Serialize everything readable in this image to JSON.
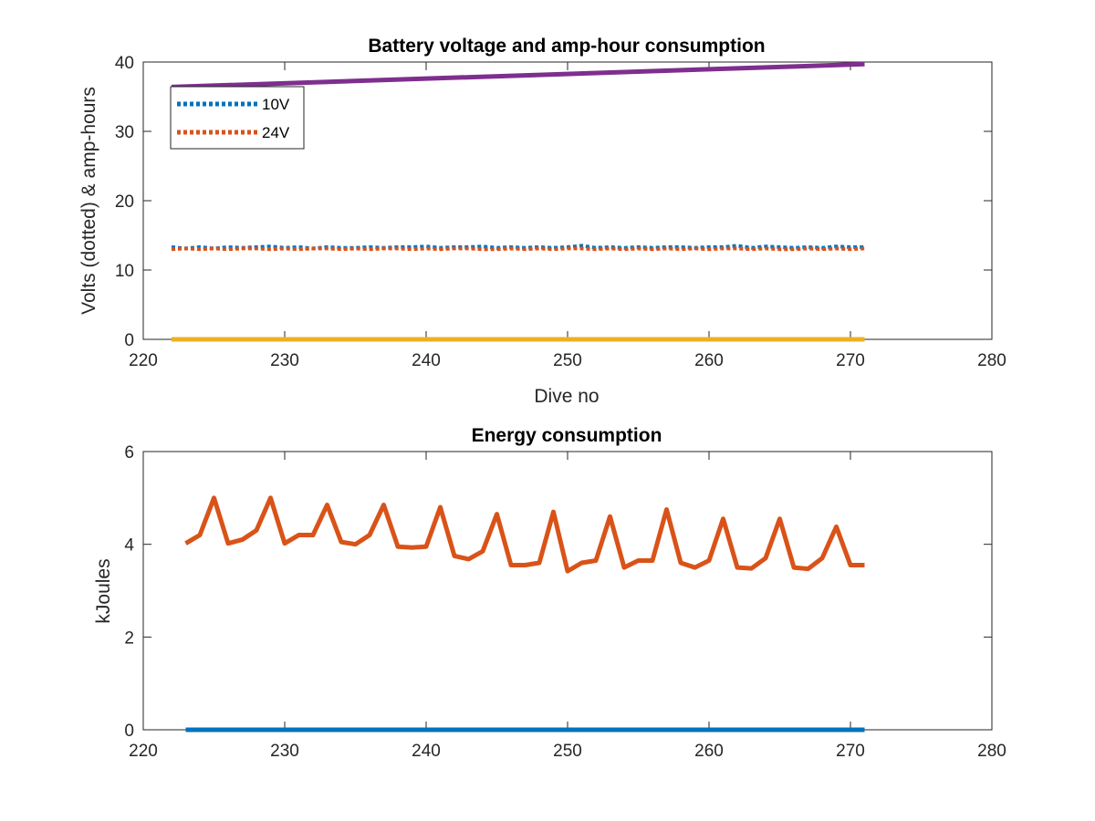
{
  "chart_data": [
    {
      "type": "line",
      "title": "Battery voltage and amp-hour consumption",
      "xlabel": "Dive no",
      "ylabel": "Volts (dotted) & amp-hours",
      "xlim": [
        220,
        280
      ],
      "ylim": [
        0,
        40
      ],
      "xticks": [
        "220",
        "230",
        "240",
        "250",
        "260",
        "270",
        "280"
      ],
      "yticks": [
        "0",
        "10",
        "20",
        "30",
        "40"
      ],
      "grid": false,
      "legend_position": "top-left",
      "series": [
        {
          "name": "10V",
          "style": "dotted",
          "color": "#0072BD",
          "x": [
            222,
            223,
            224,
            225,
            226,
            227,
            228,
            229,
            230,
            231,
            232,
            233,
            234,
            235,
            236,
            237,
            238,
            239,
            240,
            241,
            242,
            243,
            244,
            245,
            246,
            247,
            248,
            249,
            250,
            251,
            252,
            253,
            254,
            255,
            256,
            257,
            258,
            259,
            260,
            261,
            262,
            263,
            264,
            265,
            266,
            267,
            268,
            269,
            270,
            271
          ],
          "y": [
            13.3,
            13.1,
            13.3,
            13.1,
            13.3,
            13.2,
            13.3,
            13.4,
            13.2,
            13.3,
            13.1,
            13.3,
            13.2,
            13.2,
            13.3,
            13.2,
            13.3,
            13.3,
            13.4,
            13.2,
            13.3,
            13.3,
            13.4,
            13.2,
            13.3,
            13.2,
            13.3,
            13.2,
            13.3,
            13.5,
            13.2,
            13.3,
            13.2,
            13.3,
            13.2,
            13.3,
            13.3,
            13.2,
            13.3,
            13.3,
            13.5,
            13.2,
            13.4,
            13.3,
            13.2,
            13.3,
            13.2,
            13.4,
            13.3,
            13.3
          ]
        },
        {
          "name": "24V",
          "style": "dotted",
          "color": "#D95319",
          "x": [
            222,
            223,
            224,
            225,
            226,
            227,
            228,
            229,
            230,
            231,
            232,
            233,
            234,
            235,
            236,
            237,
            238,
            239,
            240,
            241,
            242,
            243,
            244,
            245,
            246,
            247,
            248,
            249,
            250,
            251,
            252,
            253,
            254,
            255,
            256,
            257,
            258,
            259,
            260,
            261,
            262,
            263,
            264,
            265,
            266,
            267,
            268,
            269,
            270,
            271
          ],
          "y": [
            13.0,
            13.1,
            13.0,
            13.1,
            13.0,
            13.1,
            13.1,
            13.0,
            13.1,
            13.0,
            13.1,
            13.1,
            13.0,
            13.1,
            13.0,
            13.1,
            13.1,
            13.0,
            13.1,
            13.0,
            13.1,
            13.1,
            13.0,
            13.0,
            13.1,
            13.0,
            13.1,
            13.0,
            13.1,
            13.1,
            13.0,
            13.1,
            13.0,
            13.1,
            13.0,
            13.1,
            13.0,
            13.1,
            13.0,
            13.1,
            13.1,
            13.0,
            13.1,
            13.0,
            13.0,
            13.1,
            13.0,
            13.1,
            13.0,
            13.1
          ]
        },
        {
          "style": "solid",
          "color": "#EDB120",
          "x": [
            222,
            271
          ],
          "y": [
            0,
            0
          ]
        },
        {
          "style": "solid",
          "color": "#7E2F8E",
          "x": [
            222,
            271
          ],
          "y": [
            36.4,
            39.7
          ]
        }
      ]
    },
    {
      "type": "line",
      "title": "Energy consumption",
      "xlabel": "",
      "ylabel": "kJoules",
      "xlim": [
        220,
        280
      ],
      "ylim": [
        0,
        6
      ],
      "xticks": [
        "220",
        "230",
        "240",
        "250",
        "260",
        "270",
        "280"
      ],
      "yticks": [
        "0",
        "2",
        "4",
        "6"
      ],
      "grid": false,
      "series": [
        {
          "style": "solid",
          "color": "#0072BD",
          "x": [
            223,
            271
          ],
          "y": [
            0,
            0
          ]
        },
        {
          "style": "solid",
          "color": "#D95319",
          "x": [
            223,
            224,
            225,
            226,
            227,
            228,
            229,
            230,
            231,
            232,
            233,
            234,
            235,
            236,
            237,
            238,
            239,
            240,
            241,
            242,
            243,
            244,
            245,
            246,
            247,
            248,
            249,
            250,
            251,
            252,
            253,
            254,
            255,
            256,
            257,
            258,
            259,
            260,
            261,
            262,
            263,
            264,
            265,
            266,
            267,
            268,
            269,
            270,
            271
          ],
          "y": [
            4.02,
            4.2,
            5.0,
            4.02,
            4.1,
            4.3,
            5.0,
            4.02,
            4.2,
            4.2,
            4.85,
            4.05,
            4.0,
            4.2,
            4.85,
            3.95,
            3.93,
            3.95,
            4.8,
            3.75,
            3.68,
            3.85,
            4.65,
            3.55,
            3.55,
            3.6,
            4.7,
            3.42,
            3.6,
            3.65,
            4.6,
            3.5,
            3.65,
            3.65,
            4.75,
            3.6,
            3.5,
            3.65,
            4.55,
            3.5,
            3.48,
            3.7,
            4.55,
            3.5,
            3.47,
            3.7,
            4.38,
            3.55,
            3.55
          ]
        }
      ]
    }
  ]
}
